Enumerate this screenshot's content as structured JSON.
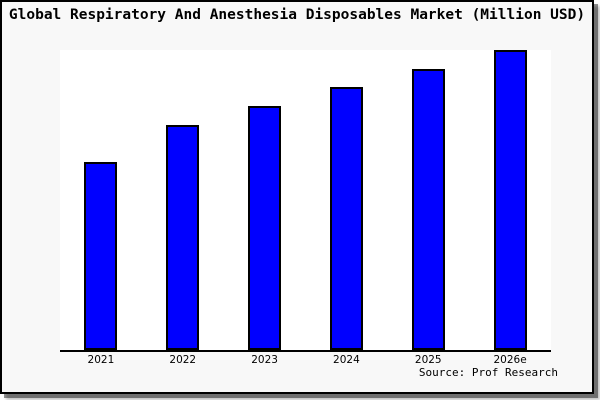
{
  "frame": {
    "background": "#f8f8f8",
    "border_color": "#000000",
    "plot_background": "#ffffff"
  },
  "chart_data": {
    "type": "bar",
    "title": "Global Respiratory And Anesthesia Disposables Market (Million USD)",
    "categories": [
      "2021",
      "2022",
      "2023",
      "2024",
      "2025",
      "2026e"
    ],
    "values": [
      62.7,
      75.0,
      81.3,
      87.7,
      93.7,
      100.0
    ],
    "values_note": "Relative bar heights as % of tallest (2026e) bar; chart shows no numeric y-axis labels",
    "ylim": [
      0,
      100
    ],
    "xlabel": "",
    "ylabel": "",
    "bar_color": "#0000ff",
    "bar_border_color": "#000000",
    "grid": false,
    "legend": false,
    "y_axis_labels_visible": false,
    "source": "Source: Prof Research"
  }
}
